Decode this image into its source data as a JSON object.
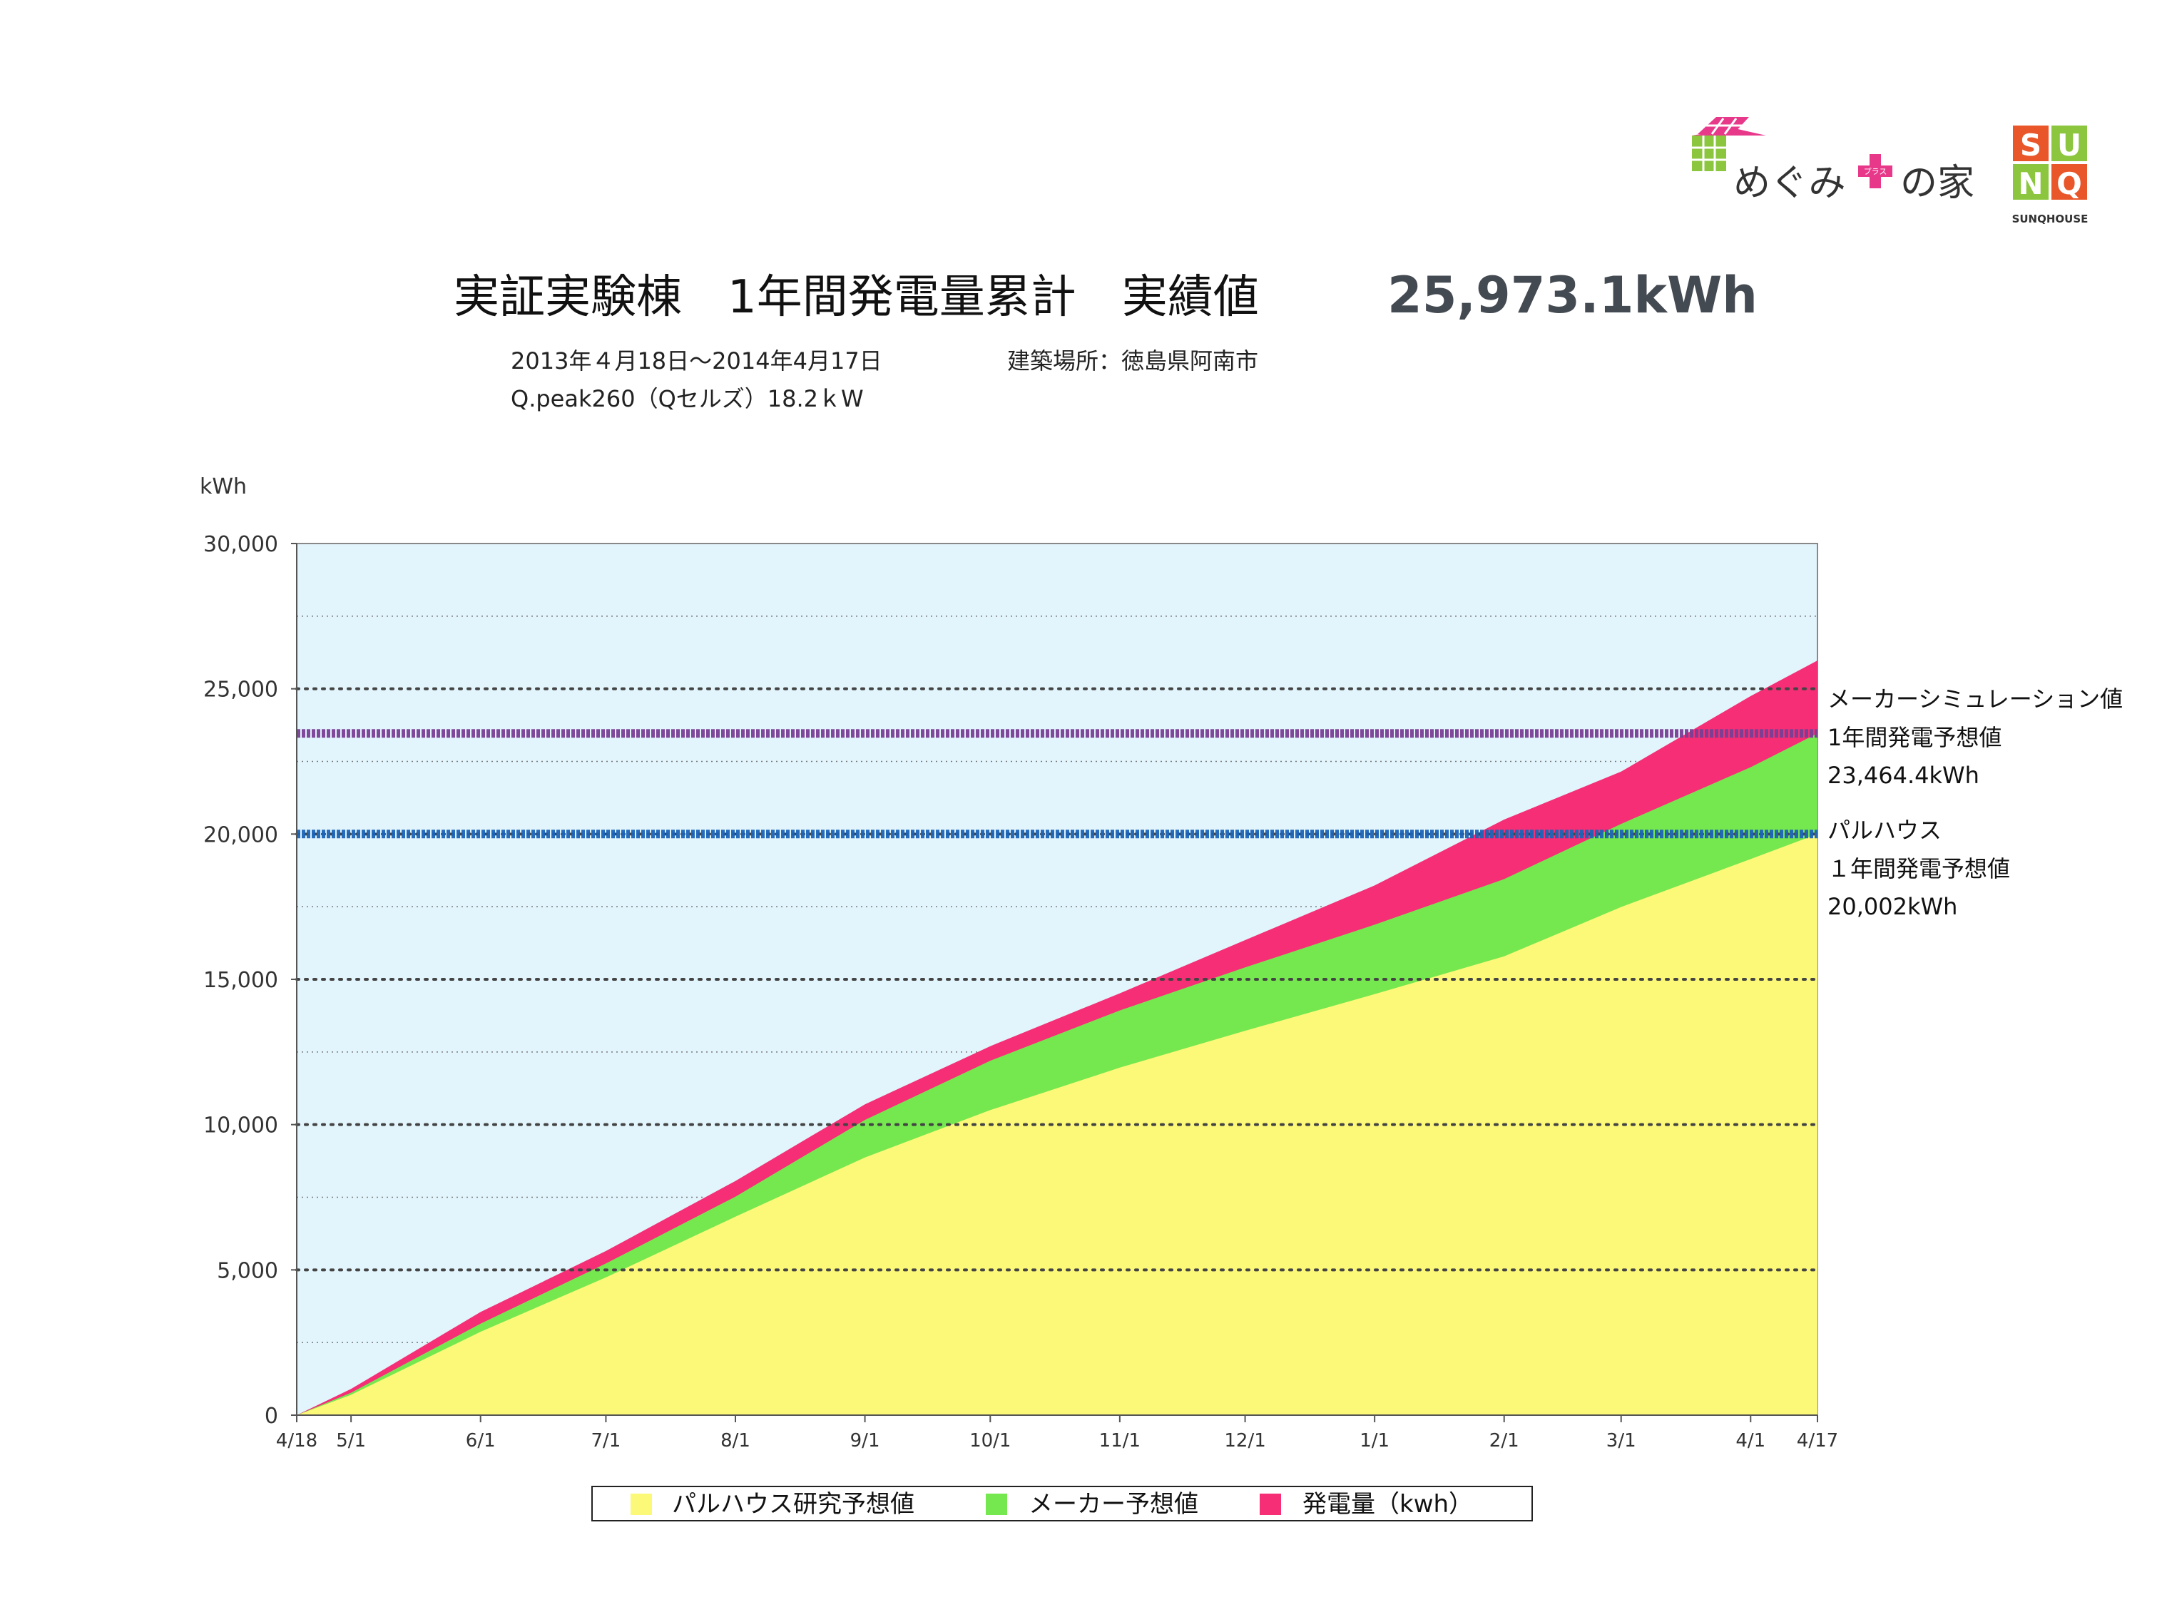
{
  "logos": {
    "megumi_text_1": "めぐみ",
    "megumi_plus": "プラス",
    "megumi_text_2": "の家",
    "sunq_letters": [
      "S",
      "U",
      "N",
      "Q"
    ],
    "sunq_caption": "SUNQHOUSE"
  },
  "header": {
    "title": "実証実験棟　1年間発電量累計　実績値",
    "total": "25,973.1kWh",
    "period": "2013年４月18日〜2014年4月17日",
    "location": "建築場所：徳島県阿南市",
    "system": "Q.peak260（Qセルズ）18.2ｋW"
  },
  "annotations": {
    "maker_line1": "メーカーシミュレーション値",
    "maker_line2": "1年間発電予想値",
    "maker_line3": "23,464.4kWh",
    "pal_line1": "パルハウス",
    "pal_line2": "１年間発電予想値",
    "pal_line3": "20,002kWh"
  },
  "colors": {
    "plot_background": "#e2f5fc",
    "pal_area": "#fcf878",
    "maker_area": "#75e84f",
    "actual_area": "#f52e75",
    "maker_line": "#7a3f95",
    "pal_line": "#1d64b8",
    "grid": "#555555"
  },
  "chart_data": {
    "type": "area",
    "stacked_cumulative": true,
    "title": "実証実験棟　1年間発電量累計　実績値　25,973.1kWh",
    "ylabel": "kWh",
    "ylim": [
      0,
      30000
    ],
    "y_ticks": [
      0,
      5000,
      10000,
      15000,
      20000,
      25000,
      30000
    ],
    "y_tick_labels": [
      "0",
      "5,000",
      "10,000",
      "15,000",
      "20,000",
      "25,000",
      "30,000"
    ],
    "y_minor_gridlines": [
      2500,
      7500,
      12500,
      17500,
      22500,
      27500
    ],
    "x_tick_labels": [
      "4/18",
      "5/1",
      "6/1",
      "7/1",
      "8/1",
      "9/1",
      "10/1",
      "11/1",
      "12/1",
      "1/1",
      "2/1",
      "3/1",
      "4/1",
      "4/17"
    ],
    "x_tick_days": [
      0,
      13,
      44,
      74,
      105,
      136,
      166,
      197,
      227,
      258,
      289,
      317,
      348,
      364
    ],
    "x_range_days": [
      0,
      364
    ],
    "grid": true,
    "legend_position": "bottom",
    "series": [
      {
        "name": "パルハウス研究予想値",
        "color": "#fcf878",
        "x": [
          0,
          13,
          44,
          74,
          105,
          136,
          166,
          197,
          227,
          258,
          289,
          317,
          348,
          364
        ],
        "y": [
          0,
          700,
          2870,
          4740,
          6830,
          8870,
          10500,
          11960,
          13230,
          14490,
          15790,
          17490,
          19140,
          20002
        ]
      },
      {
        "name": "メーカー予想値",
        "color": "#75e84f",
        "x": [
          0,
          13,
          44,
          74,
          105,
          136,
          166,
          197,
          227,
          258,
          289,
          317,
          348,
          364
        ],
        "y": [
          0,
          770,
          3150,
          5220,
          7520,
          10160,
          12200,
          13930,
          15410,
          16880,
          18450,
          20350,
          22300,
          23464
        ]
      },
      {
        "name": "発電量（kwh）",
        "color": "#f52e75",
        "x": [
          0,
          13,
          44,
          74,
          105,
          136,
          166,
          197,
          227,
          258,
          289,
          317,
          348,
          364
        ],
        "y": [
          0,
          900,
          3550,
          5650,
          8060,
          10700,
          12700,
          14520,
          16350,
          18230,
          20500,
          22150,
          24750,
          25973
        ]
      }
    ],
    "reference_lines": [
      {
        "label": "メーカーシミュレーション値 1年間発電予想値",
        "value": 23464.4,
        "color": "#7a3f95"
      },
      {
        "label": "パルハウス 1年間発電予想値",
        "value": 20002,
        "color": "#1d64b8"
      }
    ]
  }
}
